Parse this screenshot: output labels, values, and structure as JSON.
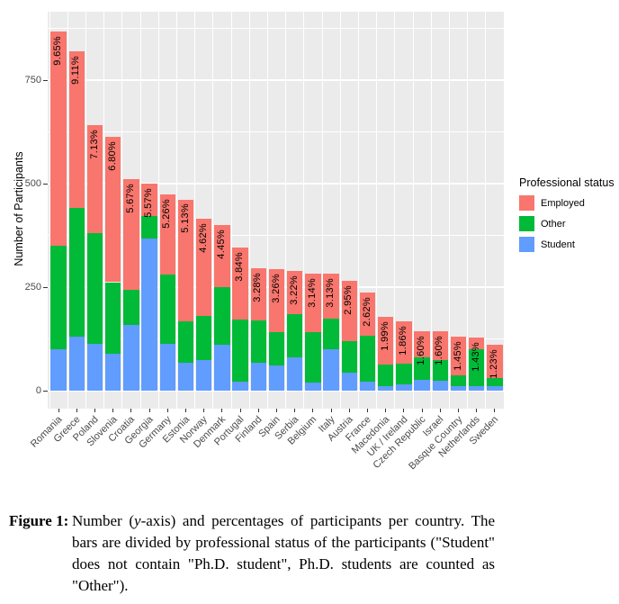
{
  "chart_data": {
    "type": "bar",
    "stacked": true,
    "title": "",
    "xlabel": "",
    "ylabel": "Number of Participants",
    "ylim": [
      0,
      911
    ],
    "yticks": [
      0,
      250,
      500,
      750
    ],
    "yticks_minor": [
      125,
      375,
      625,
      875
    ],
    "grid": true,
    "legend_position": "right",
    "legend_title": "Professional status",
    "panel_background": "#EBEBEB",
    "categories": [
      "Romania",
      "Greece",
      "Poland",
      "Slovenia",
      "Croatia",
      "Georgia",
      "Germany",
      "Estonia",
      "Norway",
      "Denmark",
      "Portugal",
      "Finland",
      "Spain",
      "Serbia",
      "Belgium",
      "Italy",
      "Austria",
      "France",
      "Macedonia",
      "UK / Ireland",
      "Czech Republic",
      "Israel",
      "Basque Country",
      "Netherlands",
      "Sweden"
    ],
    "stack_order": [
      "Student",
      "Other",
      "Employed"
    ],
    "colors": {
      "Employed": "#F8766D",
      "Other": "#00BA38",
      "Student": "#619CFF"
    },
    "series": [
      {
        "name": "Employed",
        "values": [
          518,
          379,
          262,
          350,
          266,
          80,
          193,
          295,
          236,
          150,
          174,
          126,
          151,
          106,
          141,
          107,
          146,
          103,
          116,
          102,
          64,
          70,
          92,
          28,
          80
        ]
      },
      {
        "name": "Other",
        "values": [
          250,
          310,
          268,
          172,
          86,
          54,
          167,
          99,
          106,
          140,
          150,
          101,
          82,
          104,
          122,
          75,
          75,
          111,
          52,
          50,
          54,
          50,
          28,
          90,
          20
        ]
      },
      {
        "name": "Student",
        "values": [
          100,
          131,
          112,
          90,
          158,
          367,
          113,
          68,
          74,
          110,
          22,
          68,
          60,
          80,
          20,
          100,
          44,
          22,
          11,
          15,
          26,
          24,
          10,
          11,
          11
        ]
      }
    ],
    "bar_labels": [
      "9.65%",
      "9.11%",
      "7.13%",
      "6.80%",
      "5.67%",
      "5.57%",
      "5.26%",
      "5.13%",
      "4.62%",
      "4.45%",
      "3.84%",
      "3.28%",
      "3.26%",
      "3.22%",
      "3.14%",
      "3.13%",
      "2.95%",
      "2.62%",
      "1.99%",
      "1.86%",
      "1.60%",
      "1.60%",
      "1.45%",
      "1.43%",
      "1.23%"
    ]
  },
  "caption": {
    "label": "Figure 1:",
    "text_before_italic": "Number (",
    "italic_word": "y",
    "text_after_italic": "-axis) and percentages of participants per country. The bars are divided by professional status of the participants (\"Student\" does not contain \"Ph.D. student\", Ph.D. students are counted as \"Other\")."
  }
}
